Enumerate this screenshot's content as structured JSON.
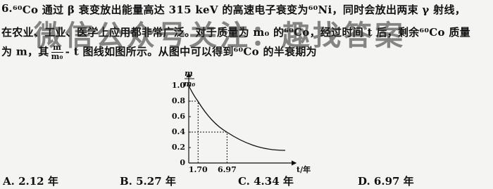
{
  "question": {
    "number": "6.",
    "lines": [
      "⁶⁰Co 通过 β 衰变放出能量高达 315 keV 的高速电子衰变为⁶⁰Ni，同时会放出两束 γ 射线，",
      "在农业、工业、医学上应用都非常广泛。对于质量为 m₀ 的⁶⁰Co，经过时间 t 后，剩余⁶⁰Co 质量"
    ],
    "line3": {
      "before": "为 m，其",
      "fraction": {
        "numerator": "m",
        "denominator": "m₀"
      },
      "after": "- t 图线如图所示。从图中可以得到⁶⁰Co 的半衰期为"
    }
  },
  "watermark": "微信公众号关注：趣找答案",
  "graph": {
    "y_label": {
      "numerator": "m",
      "denominator": "m₀"
    },
    "x_label": "t/年",
    "yticks": [
      0,
      0.2,
      0.4,
      0.6,
      0.8,
      {
        "value": 1.0,
        "label": "1.0"
      }
    ],
    "xticks": [
      {
        "value": 1.7,
        "label": "1.70"
      },
      6.97
    ],
    "marked_points": [
      {
        "t": 1.7,
        "ratio": 0.8
      },
      {
        "t": 6.97,
        "ratio": 0.4
      }
    ]
  },
  "options": [
    "A. 2.12 年",
    "B. 5.27 年",
    "C. 4.34 年",
    "D. 6.97 年"
  ]
}
